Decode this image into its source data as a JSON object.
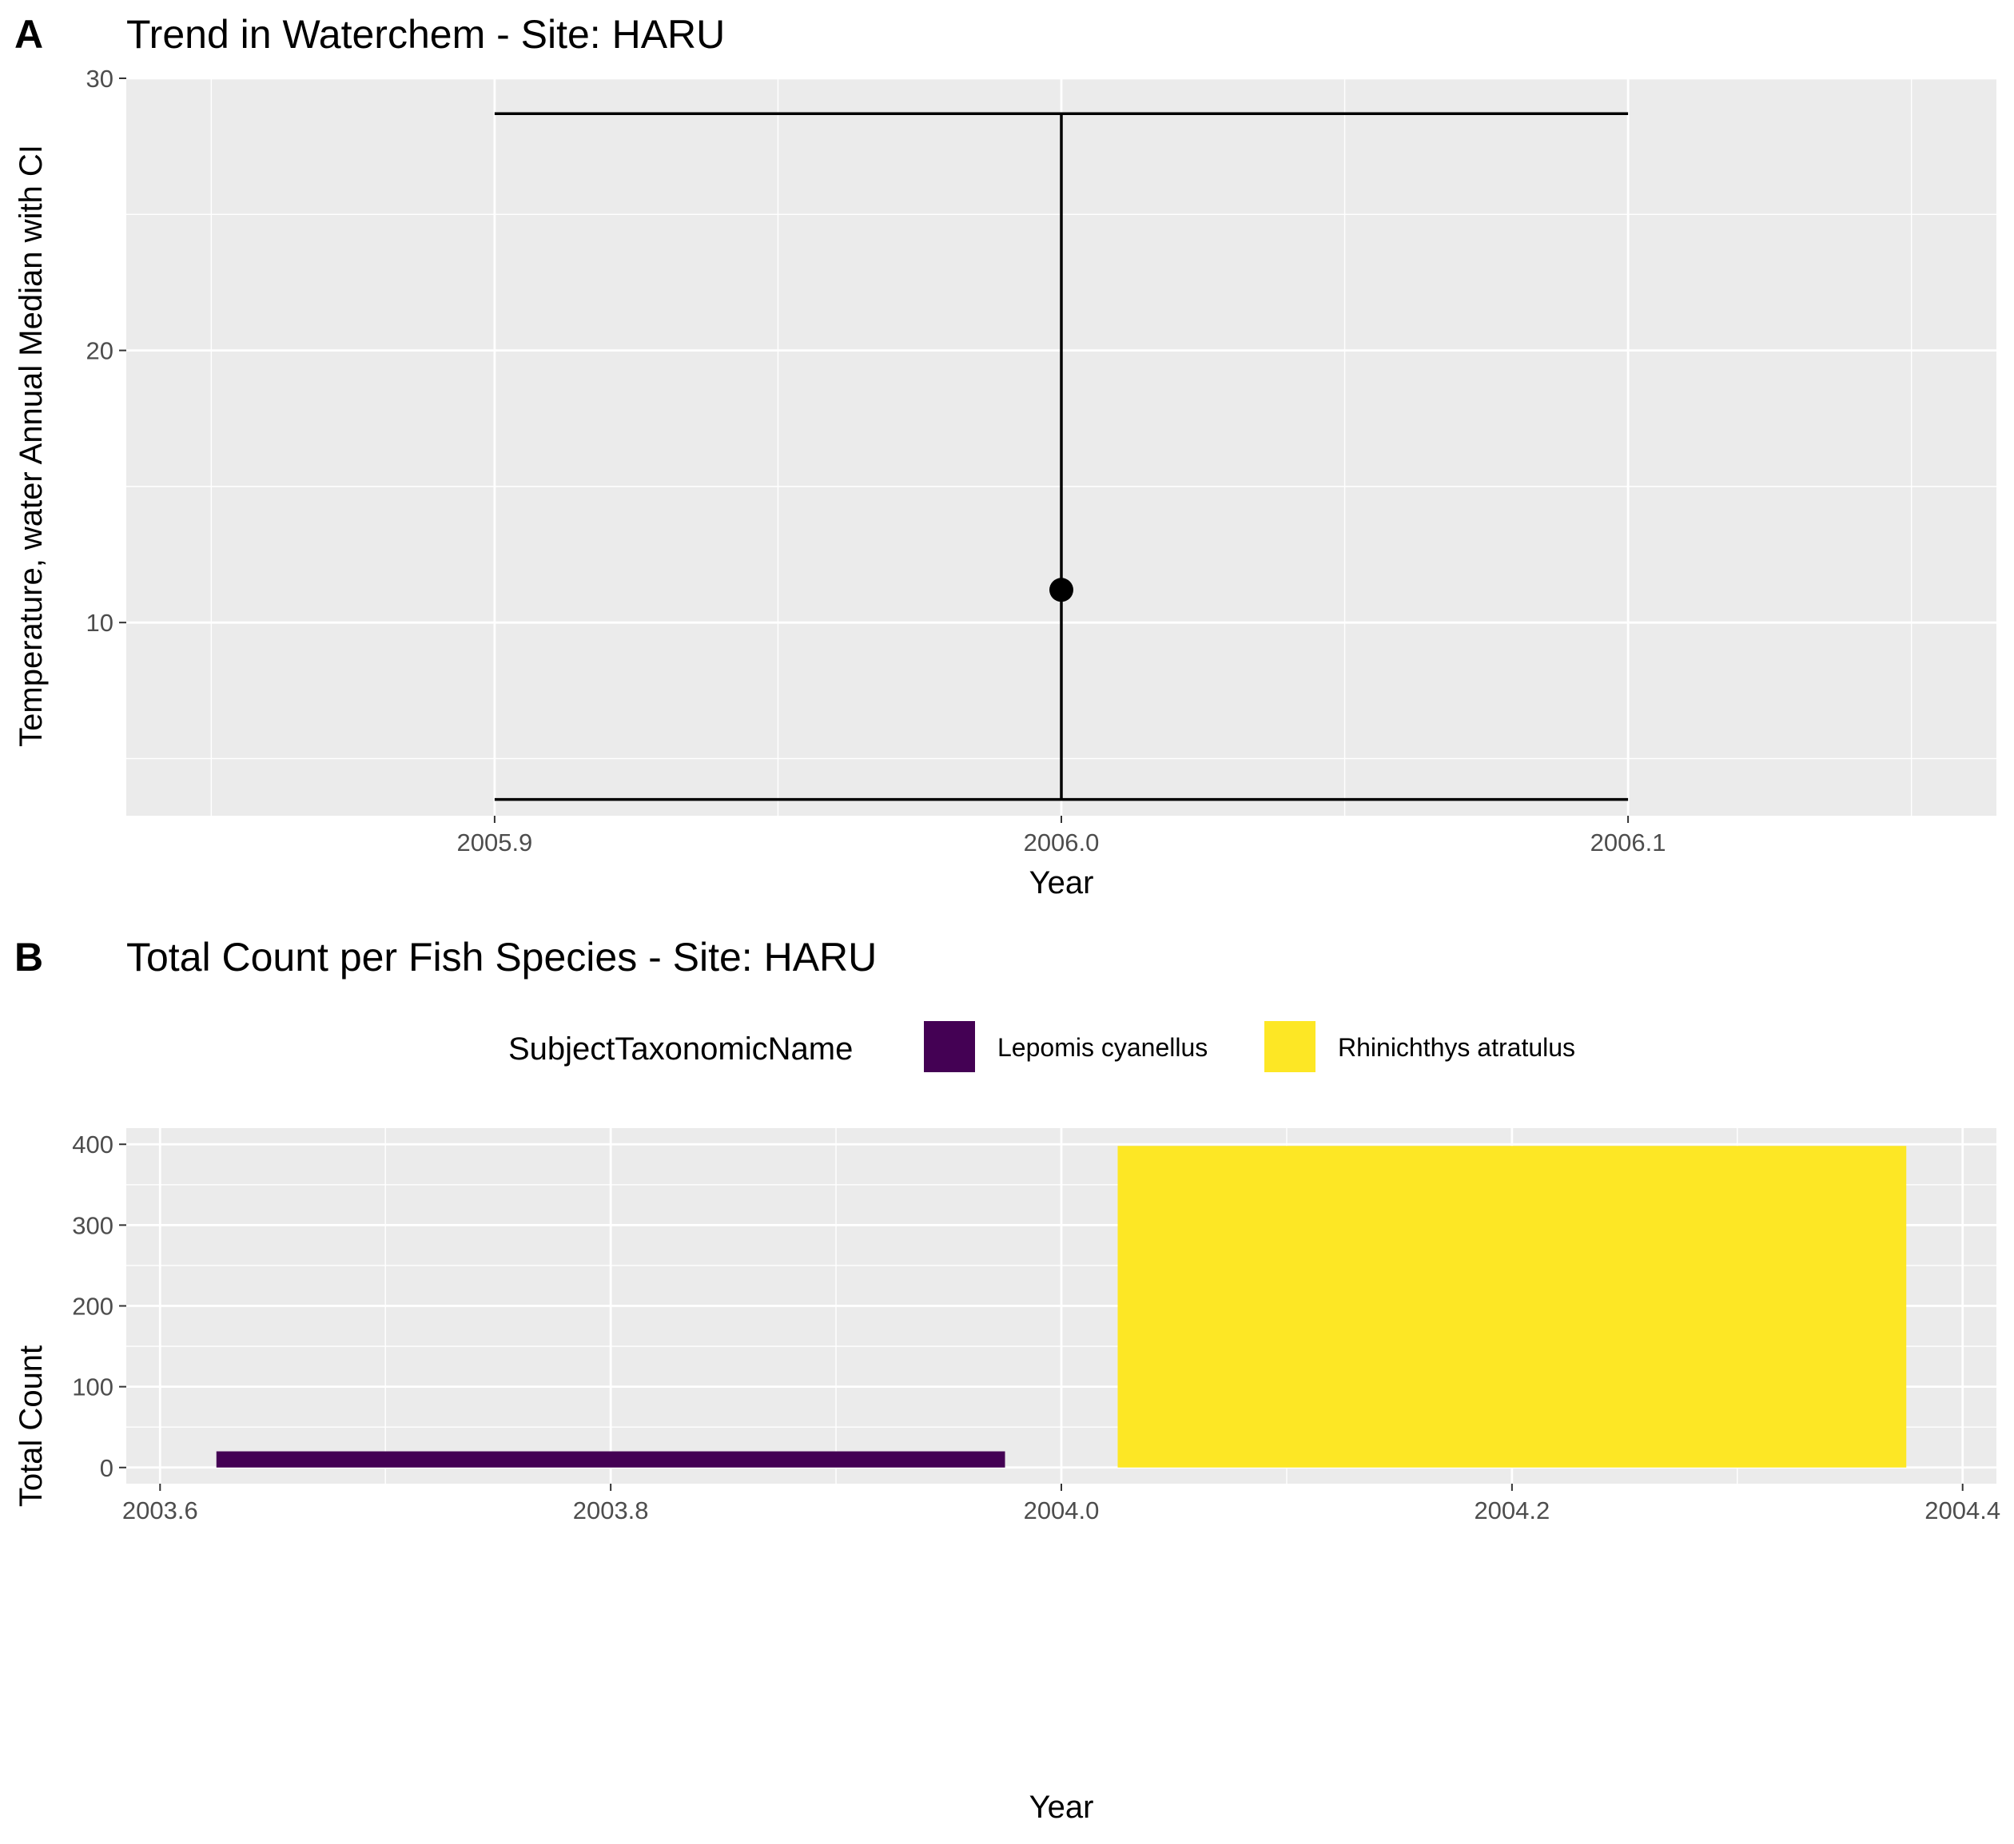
{
  "chart_data": [
    {
      "panel_tag": "A",
      "type": "scatter",
      "title": "Trend in Waterchem - Site: HARU",
      "xlabel": "Year",
      "ylabel": "Temperature, water Annual Median with CI",
      "x_ticks": [
        "2005.9",
        "2006.0",
        "2006.1"
      ],
      "y_ticks": [
        "10",
        "20",
        "30"
      ],
      "xlim": [
        2005.835,
        2006.165
      ],
      "ylim": [
        2.9,
        30.0
      ],
      "grid": true,
      "point_color": "#000000",
      "points": [
        {
          "x": 2006.0,
          "y": 11.2,
          "ymin": 3.5,
          "ymax": 28.7,
          "errorbar_xmin": 2005.9,
          "errorbar_xmax": 2006.1
        }
      ]
    },
    {
      "panel_tag": "B",
      "type": "bar",
      "title": "Total Count per Fish Species - Site: HARU",
      "xlabel": "Year",
      "ylabel": "Total Count",
      "x_ticks": [
        "2003.6",
        "2003.8",
        "2004.0",
        "2004.2",
        "2004.4"
      ],
      "y_ticks": [
        "0",
        "100",
        "200",
        "300",
        "400"
      ],
      "xlim": [
        2003.585,
        2004.415
      ],
      "ylim": [
        -20,
        420
      ],
      "grid": true,
      "legend": {
        "title": "SubjectTaxonomicName",
        "position": "top"
      },
      "series": [
        {
          "name": "Lepomis cyanellus",
          "color": "#440154",
          "x_start": 2003.625,
          "x_end": 2003.975,
          "value": 20
        },
        {
          "name": "Rhinichthys atratulus",
          "color": "#FDE725",
          "x_start": 2004.025,
          "x_end": 2004.375,
          "value": 398
        }
      ]
    }
  ]
}
